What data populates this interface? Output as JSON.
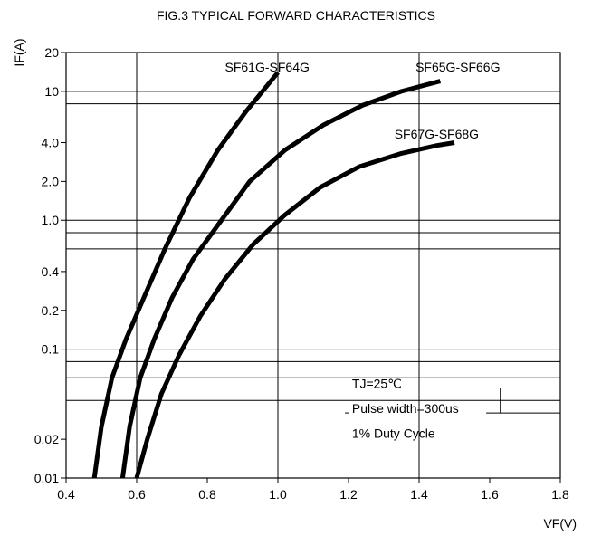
{
  "chart_data": {
    "type": "line",
    "title": "FIG.3  TYPICAL FORWARD CHARACTERISTICS",
    "xlabel": "VF(V)",
    "ylabel": "IF(A)",
    "xlim": [
      0.4,
      1.8
    ],
    "ylim": [
      0.01,
      20
    ],
    "x_ticks": [
      0.4,
      0.6,
      0.8,
      1.0,
      1.2,
      1.4,
      1.6,
      1.8
    ],
    "x_tick_labels": [
      "0.4",
      "0.6",
      "0.8",
      "1.0",
      "1.2",
      "1.4",
      "1.6",
      "1.8"
    ],
    "y_ticks": [
      0.01,
      0.02,
      0.1,
      0.2,
      0.4,
      1.0,
      2.0,
      4.0,
      10,
      20
    ],
    "y_tick_labels": [
      "0.01",
      "0.02",
      "0.1",
      "0.2",
      "0.4",
      "1.0",
      "2.0",
      "4.0",
      "10",
      "20"
    ],
    "vertical_grid": [
      0.6,
      1.0,
      1.4,
      1.8
    ],
    "horizontal_grid": [
      0.04,
      0.06,
      0.08,
      0.1,
      0.6,
      0.8,
      1.0,
      6.0,
      8.0,
      10
    ],
    "y_scale": "log",
    "grid": true,
    "series": [
      {
        "name": "SF61G-SF64G",
        "x": [
          0.48,
          0.5,
          0.53,
          0.57,
          0.62,
          0.68,
          0.75,
          0.83,
          0.91,
          1.0
        ],
        "y": [
          0.01,
          0.025,
          0.06,
          0.12,
          0.25,
          0.6,
          1.5,
          3.5,
          7.0,
          14.0
        ]
      },
      {
        "name": "SF65G-SF66G",
        "x": [
          0.56,
          0.58,
          0.61,
          0.65,
          0.7,
          0.76,
          0.84,
          0.92,
          1.02,
          1.13,
          1.24,
          1.35,
          1.46
        ],
        "y": [
          0.01,
          0.025,
          0.06,
          0.12,
          0.25,
          0.5,
          1.0,
          2.0,
          3.5,
          5.5,
          7.8,
          10.0,
          12.0
        ]
      },
      {
        "name": "SF67G-SF68G",
        "x": [
          0.6,
          0.63,
          0.67,
          0.72,
          0.78,
          0.85,
          0.93,
          1.02,
          1.12,
          1.23,
          1.35,
          1.45,
          1.5
        ],
        "y": [
          0.01,
          0.02,
          0.045,
          0.09,
          0.18,
          0.35,
          0.65,
          1.1,
          1.8,
          2.6,
          3.3,
          3.8,
          4.0
        ]
      }
    ],
    "annotations": [
      "TJ=25℃",
      "Pulse width=300us",
      "1% Duty Cycle"
    ],
    "series_labels": [
      "SF61G-SF64G",
      "SF65G-SF66G",
      "SF67G-SF68G"
    ],
    "colors": {
      "background": "#ffffff",
      "axis": "#000000",
      "grid": "#000000",
      "curve": "#000000"
    }
  }
}
